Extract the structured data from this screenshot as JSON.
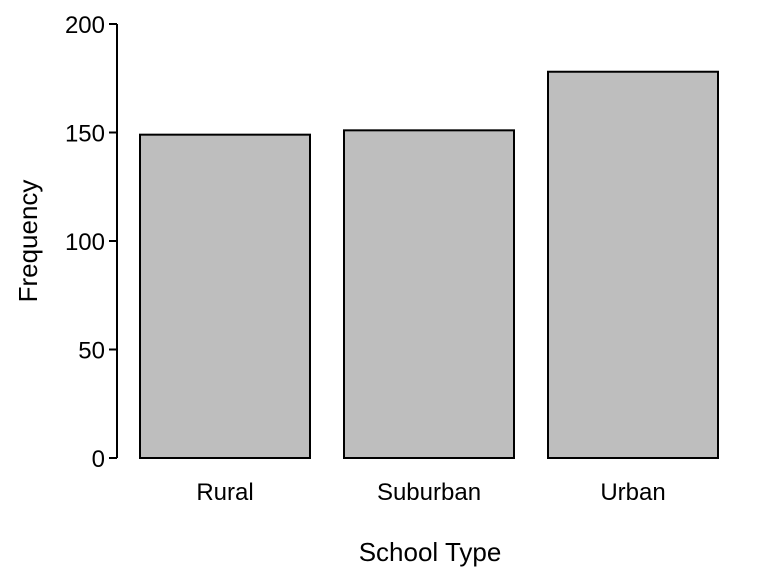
{
  "chart_data": {
    "type": "bar",
    "title": "",
    "xlabel": "School Type",
    "ylabel": "Frequency",
    "categories": [
      "Rural",
      "Suburban",
      "Urban"
    ],
    "values": [
      149,
      151,
      178
    ],
    "ylim": [
      0,
      200
    ],
    "yticks": [
      0,
      50,
      100,
      150,
      200
    ],
    "grid": false,
    "legend": "none",
    "colors": {
      "bar_fill": "#bebebe",
      "bar_stroke": "#000000",
      "axis": "#000000",
      "text": "#000000",
      "background": "#ffffff"
    }
  }
}
